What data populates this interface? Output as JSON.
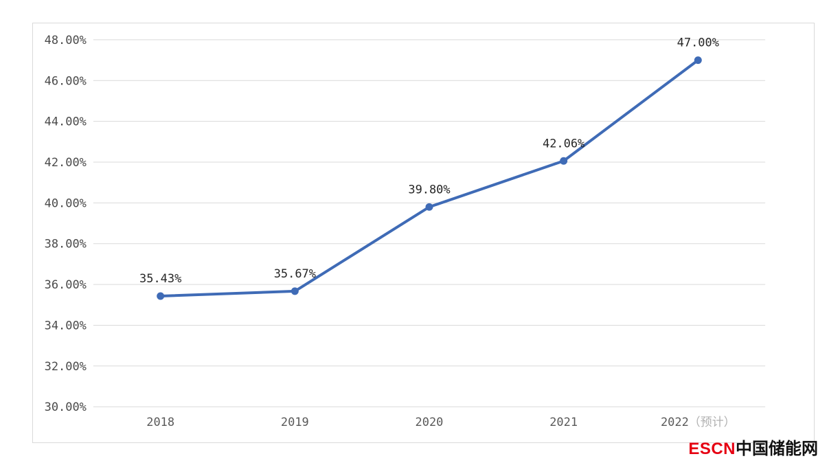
{
  "chart_data": {
    "type": "line",
    "title": "",
    "categories": [
      "2018",
      "2019",
      "2020",
      "2021",
      "2022"
    ],
    "last_category_suffix": "（预计）",
    "values": [
      35.43,
      35.67,
      39.8,
      42.06,
      47.0
    ],
    "data_labels": [
      "35.43%",
      "35.67%",
      "39.80%",
      "42.06%",
      "47.00%"
    ],
    "ylim": [
      30,
      48
    ],
    "y_ticks": [
      30,
      32,
      34,
      36,
      38,
      40,
      42,
      44,
      46,
      48
    ],
    "y_tick_labels": [
      "30.00%",
      "32.00%",
      "34.00%",
      "36.00%",
      "38.00%",
      "40.00%",
      "42.00%",
      "44.00%",
      "46.00%",
      "48.00%"
    ],
    "grid": true,
    "legend": "none",
    "line_color": "#3f6bb6",
    "marker": "circle"
  },
  "watermark": {
    "escn": "ESCN",
    "site_name": "中国储能网",
    "escn_color": "#e60012"
  },
  "colors": {
    "grid": "#d9d9d9",
    "border": "#d9d9d9",
    "y_tick_label": "#4a4a4a",
    "x_tick_label": "#595959",
    "x_suffix_muted": "#b0b0b0",
    "data_label": "#262626",
    "background": "#ffffff"
  }
}
